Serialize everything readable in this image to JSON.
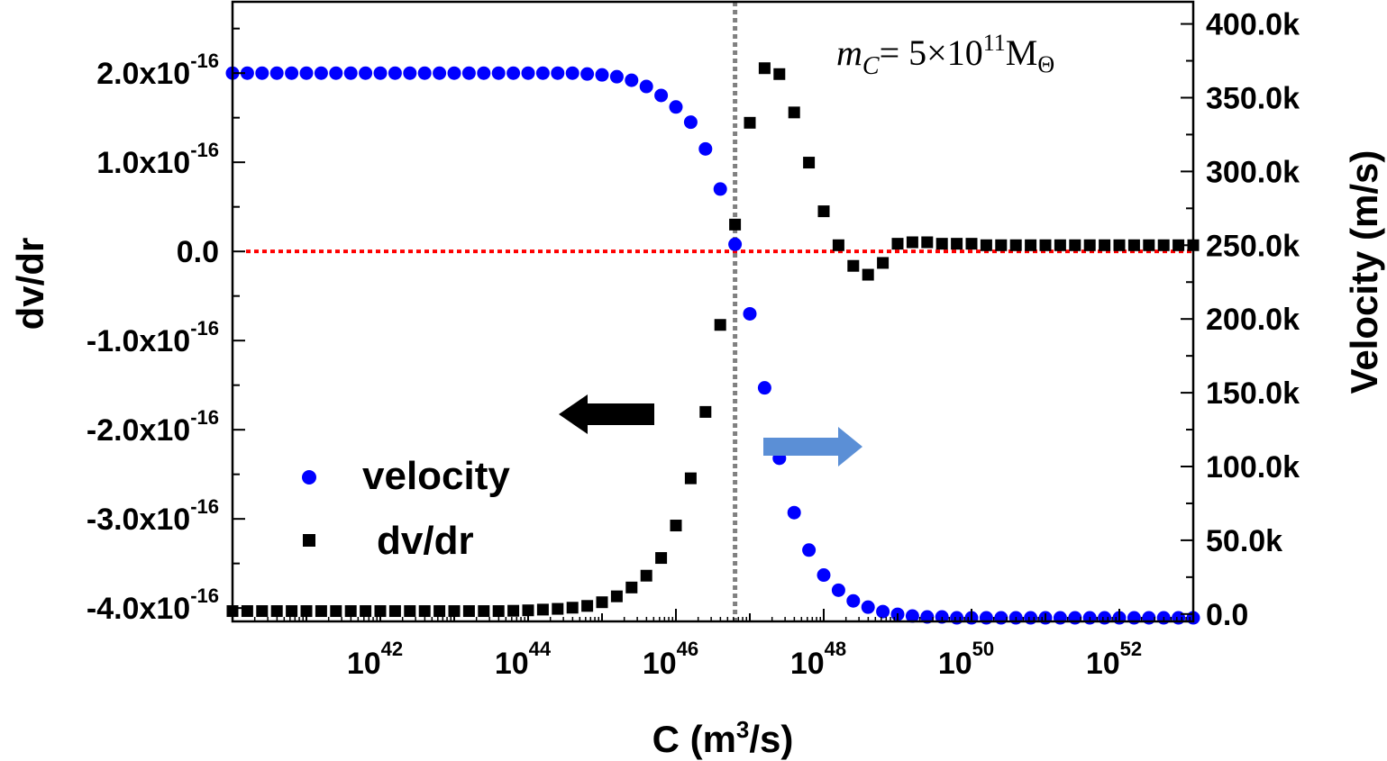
{
  "chart_data": {
    "type": "scatter",
    "title": "",
    "xlabel": {
      "base": "C (m",
      "sup": "3",
      "tail": "/s)"
    },
    "ylabel_left": "dv/dr",
    "ylabel_right": "Velocity (m/s)",
    "x_scale": "log",
    "xlim": [
      1e+40,
      1e+53
    ],
    "ylim_left": [
      -4.15e-16,
      2.8e-16
    ],
    "ylim_right": [
      -5000,
      415000
    ],
    "x_ticks": [
      {
        "value": 1e+42,
        "base": "10",
        "exp": "42"
      },
      {
        "value": 1e+44,
        "base": "10",
        "exp": "44"
      },
      {
        "value": 1e+46,
        "base": "10",
        "exp": "46"
      },
      {
        "value": 1e+48,
        "base": "10",
        "exp": "48"
      },
      {
        "value": 1e+50,
        "base": "10",
        "exp": "50"
      },
      {
        "value": 1e+52,
        "base": "10",
        "exp": "52"
      }
    ],
    "y_left_ticks": [
      {
        "value": 2e-16,
        "mant": "2.0x10",
        "exp": "-16"
      },
      {
        "value": 1e-16,
        "mant": "1.0x10",
        "exp": "-16"
      },
      {
        "value": 0,
        "mant": "0.0",
        "exp": ""
      },
      {
        "value": -1e-16,
        "mant": "-1.0x10",
        "exp": "-16"
      },
      {
        "value": -2e-16,
        "mant": "-2.0x10",
        "exp": "-16"
      },
      {
        "value": -3e-16,
        "mant": "-3.0x10",
        "exp": "-16"
      },
      {
        "value": -4e-16,
        "mant": "-4.0x10",
        "exp": "-16"
      }
    ],
    "y_right_ticks": [
      {
        "value": 400000,
        "label": "400.0k"
      },
      {
        "value": 350000,
        "label": "350.0k"
      },
      {
        "value": 300000,
        "label": "300.0k"
      },
      {
        "value": 250000,
        "label": "250.0k"
      },
      {
        "value": 200000,
        "label": "200.0k"
      },
      {
        "value": 150000,
        "label": "150.0k"
      },
      {
        "value": 100000,
        "label": "100.0k"
      },
      {
        "value": 50000,
        "label": "50.0k"
      },
      {
        "value": 0,
        "label": "0.0"
      }
    ],
    "legend": [
      {
        "name": "velocity",
        "marker": "circle",
        "color": "#0000ff"
      },
      {
        "name": "dv/dr",
        "marker": "square",
        "color": "#000000"
      }
    ],
    "series": [
      {
        "name": "velocity",
        "axis": "left",
        "marker": "circle",
        "color": "#0000ff",
        "log10_x": [
          40.0,
          40.2,
          40.4,
          40.6,
          40.8,
          41.0,
          41.2,
          41.4,
          41.6,
          41.8,
          42.0,
          42.2,
          42.4,
          42.6,
          42.8,
          43.0,
          43.2,
          43.4,
          43.6,
          43.8,
          44.0,
          44.2,
          44.4,
          44.6,
          44.8,
          45.0,
          45.2,
          45.4,
          45.6,
          45.8,
          46.0,
          46.2,
          46.4,
          46.6,
          46.8,
          47.0,
          47.2,
          47.4,
          47.6,
          47.8,
          48.0,
          48.2,
          48.4,
          48.6,
          48.8,
          49.0,
          49.2,
          49.4,
          49.6,
          49.8,
          50.0,
          50.2,
          50.4,
          50.6,
          50.8,
          51.0,
          51.2,
          51.4,
          51.6,
          51.8,
          52.0,
          52.2,
          52.4,
          52.6,
          52.8,
          53.0
        ],
        "y": [
          2e-16,
          2e-16,
          2e-16,
          2e-16,
          2e-16,
          2e-16,
          2e-16,
          2e-16,
          2e-16,
          2e-16,
          2e-16,
          2e-16,
          2e-16,
          2e-16,
          2e-16,
          2e-16,
          2e-16,
          2e-16,
          2e-16,
          2e-16,
          2e-16,
          2e-16,
          2e-16,
          2e-16,
          1.99e-16,
          1.98e-16,
          1.96e-16,
          1.92e-16,
          1.85e-16,
          1.75e-16,
          1.62e-16,
          1.45e-16,
          1.15e-16,
          7e-17,
          8e-18,
          -7e-17,
          -1.53e-16,
          -2.32e-16,
          -2.93e-16,
          -3.35e-16,
          -3.63e-16,
          -3.8e-16,
          -3.92e-16,
          -3.99e-16,
          -4.04e-16,
          -4.07e-16,
          -4.09e-16,
          -4.1e-16,
          -4.1e-16,
          -4.11e-16,
          -4.11e-16,
          -4.11e-16,
          -4.11e-16,
          -4.11e-16,
          -4.11e-16,
          -4.11e-16,
          -4.11e-16,
          -4.11e-16,
          -4.11e-16,
          -4.11e-16,
          -4.11e-16,
          -4.11e-16,
          -4.11e-16,
          -4.11e-16,
          -4.11e-16,
          -4.11e-16
        ]
      },
      {
        "name": "dv/dr",
        "axis": "right",
        "marker": "square",
        "color": "#000000",
        "log10_x": [
          40.0,
          40.2,
          40.4,
          40.6,
          40.8,
          41.0,
          41.2,
          41.4,
          41.6,
          41.8,
          42.0,
          42.2,
          42.4,
          42.6,
          42.8,
          43.0,
          43.2,
          43.4,
          43.6,
          43.8,
          44.0,
          44.2,
          44.4,
          44.6,
          44.8,
          45.0,
          45.2,
          45.4,
          45.6,
          45.8,
          46.0,
          46.2,
          46.4,
          46.6,
          46.8,
          47.0,
          47.2,
          47.4,
          47.6,
          47.8,
          48.0,
          48.2,
          48.4,
          48.6,
          48.8,
          49.0,
          49.2,
          49.4,
          49.6,
          49.8,
          50.0,
          50.2,
          50.4,
          50.6,
          50.8,
          51.0,
          51.2,
          51.4,
          51.6,
          51.8,
          52.0,
          52.2,
          52.4,
          52.6,
          52.8,
          53.0
        ],
        "y": [
          2000,
          2000,
          2000,
          2000,
          2000,
          2000,
          2000,
          2000,
          2000,
          2000,
          2000,
          2000,
          2000,
          2000,
          2000,
          2000,
          2000,
          2000,
          2000,
          2200,
          2500,
          3000,
          3500,
          4300,
          5500,
          8000,
          12000,
          18000,
          26000,
          38000,
          60000,
          92000,
          137000,
          196000,
          264000,
          333000,
          370000,
          366000,
          340000,
          306000,
          273000,
          250000,
          236000,
          230000,
          238000,
          251000,
          252000,
          252000,
          251000,
          251000,
          251000,
          250000,
          250000,
          250000,
          250000,
          250000,
          250000,
          250000,
          250000,
          250000,
          250000,
          250000,
          250000,
          250000,
          250000,
          250000
        ]
      }
    ],
    "reference_lines": [
      {
        "orientation": "vertical",
        "log10_x": 46.8,
        "color": "#808080",
        "style": "dotted"
      },
      {
        "orientation": "horizontal",
        "axis": "left",
        "y": 0,
        "color": "#ff0000",
        "style": "dotted"
      }
    ],
    "arrows": [
      {
        "points_to": "left axis",
        "color": "#000000"
      },
      {
        "points_to": "right axis",
        "color": "#5b8fd6"
      }
    ],
    "annotation": {
      "var": "m",
      "sub": "C",
      "eq": "= 5×10",
      "exp": "11",
      "unit": "M",
      "unit_sub": "Θ"
    }
  }
}
